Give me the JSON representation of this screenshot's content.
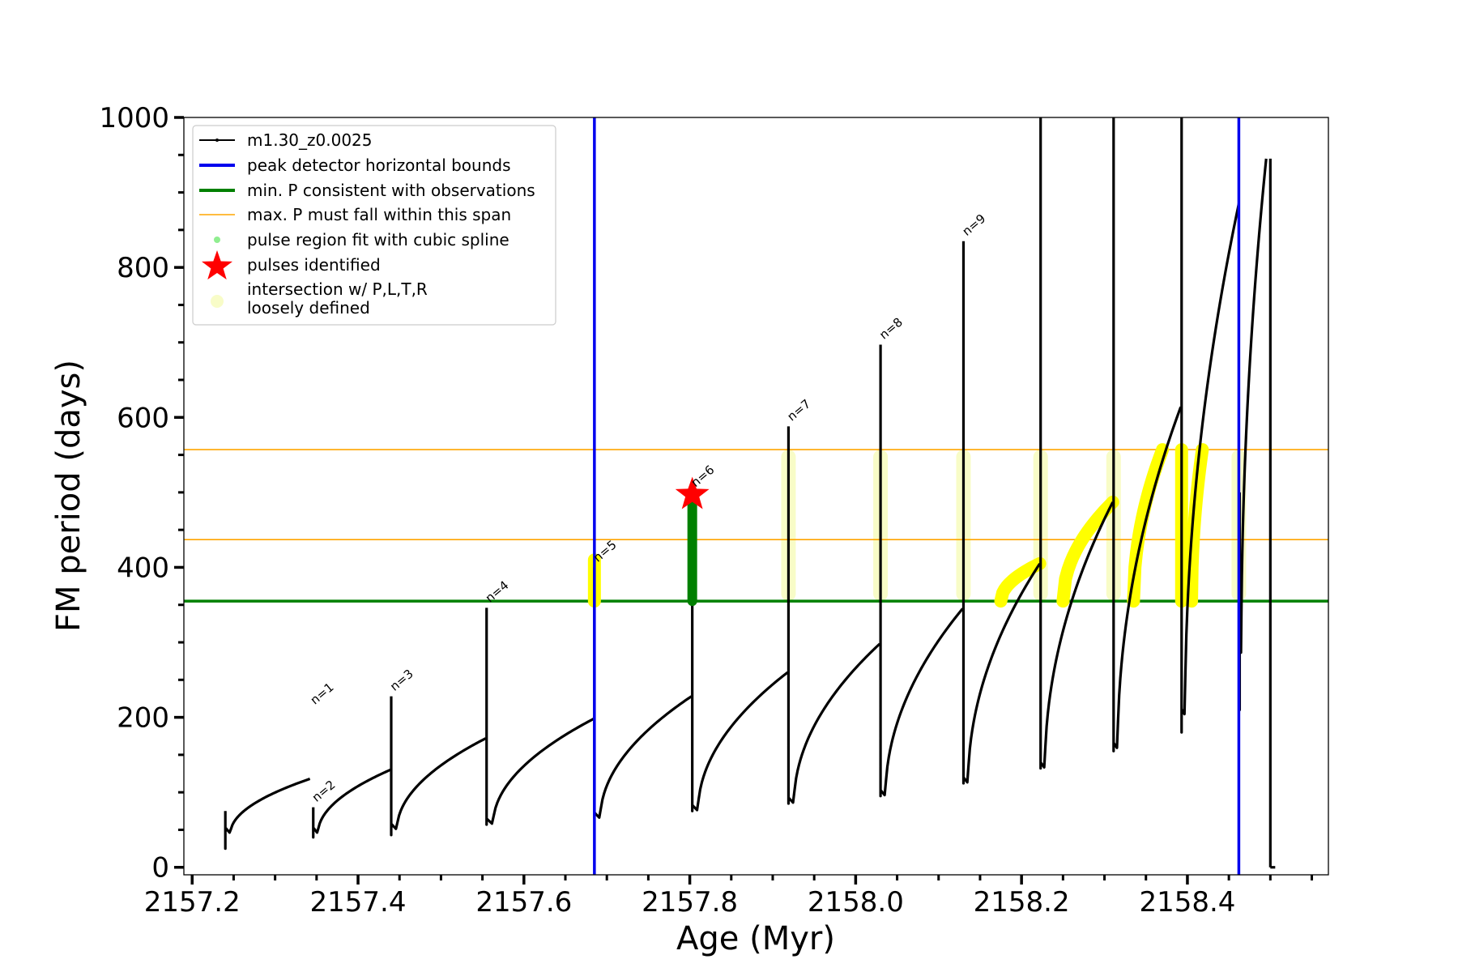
{
  "chart_data": {
    "type": "line",
    "xlabel": "Age (Myr)",
    "ylabel": "FM period (days)",
    "xlim": [
      2157.19,
      2158.57
    ],
    "ylim": [
      -10,
      1000
    ],
    "x_ticks": [
      2157.2,
      2157.4,
      2157.6,
      2157.8,
      2158.0,
      2158.2,
      2158.4
    ],
    "x_tick_labels": [
      "2157.2",
      "2157.4",
      "2157.6",
      "2157.8",
      "2158.0",
      "2158.2",
      "2158.4"
    ],
    "y_ticks": [
      0,
      200,
      400,
      600,
      800,
      1000
    ],
    "y_tick_labels": [
      "0",
      "200",
      "400",
      "600",
      "800",
      "1000"
    ],
    "grid": false,
    "legend_position": "top-left",
    "legend": [
      {
        "label": "m1.30_z0.0025",
        "style": "line-with-dots",
        "color": "#000000"
      },
      {
        "label": "peak detector horizontal bounds",
        "style": "line",
        "color": "#0000ee"
      },
      {
        "label": "min. P consistent with observations",
        "style": "line",
        "color": "#008000"
      },
      {
        "label": "max. P must fall within this span",
        "style": "thin-line",
        "color": "#ffa500"
      },
      {
        "label": "pulse region fit with cubic spline",
        "style": "dot",
        "color": "#90ee90"
      },
      {
        "label": "pulses identified",
        "style": "star",
        "color": "#ff0000"
      },
      {
        "label": "intersection w/ P,L,T,R\nloosely defined",
        "style": "circle",
        "color": "#f8fcc8"
      }
    ],
    "vertical_bounds": [
      2157.685,
      2158.462
    ],
    "min_period": 355,
    "max_period_span": [
      437,
      557
    ],
    "pulses": [
      {
        "label": "n=1",
        "x": 2157.344,
        "peak": 210,
        "min": 40
      },
      {
        "label": "n=2",
        "x": 2157.346,
        "peak": 80,
        "min": 45
      },
      {
        "label": "n=3",
        "x": 2157.44,
        "peak": 228,
        "min": 43
      },
      {
        "label": "n=4",
        "x": 2157.555,
        "peak": 346,
        "min": 57
      },
      {
        "label": "n=5",
        "x": 2157.685,
        "peak": 400,
        "min": 65
      },
      {
        "label": "n=6",
        "x": 2157.803,
        "peak": 500,
        "min": 75
      },
      {
        "label": "n=7",
        "x": 2157.919,
        "peak": 588,
        "min": 85
      },
      {
        "label": "n=8",
        "x": 2158.03,
        "peak": 697,
        "min": 95
      },
      {
        "label": "n=9",
        "x": 2158.13,
        "peak": 835,
        "min": 110
      }
    ],
    "series": [
      {
        "name": "m1.30_z0.0025",
        "color": "#000000",
        "segments": [
          {
            "x0": 2157.24,
            "x1": 2157.342,
            "y0": 45,
            "y1": 118,
            "spike_start": 75,
            "spike_bottom": 25
          },
          {
            "x0": 2157.346,
            "x1": 2157.439,
            "y0": 45,
            "y1": 130,
            "spike_start": 80,
            "spike_bottom": 40
          },
          {
            "x0": 2157.44,
            "x1": 2157.554,
            "y0": 50,
            "y1": 172,
            "spike_start": 228,
            "spike_bottom": 43
          },
          {
            "x0": 2157.555,
            "x1": 2157.684,
            "y0": 57,
            "y1": 198,
            "spike_start": 346,
            "spike_bottom": 57
          },
          {
            "x0": 2157.685,
            "x1": 2157.802,
            "y0": 65,
            "y1": 228,
            "spike_start": 400,
            "spike_bottom": 65
          },
          {
            "x0": 2157.803,
            "x1": 2157.918,
            "y0": 75,
            "y1": 260,
            "spike_start": 500,
            "spike_bottom": 75
          },
          {
            "x0": 2157.919,
            "x1": 2158.029,
            "y0": 85,
            "y1": 298,
            "spike_start": 588,
            "spike_bottom": 85
          },
          {
            "x0": 2158.03,
            "x1": 2158.129,
            "y0": 95,
            "y1": 345,
            "spike_start": 697,
            "spike_bottom": 95
          },
          {
            "x0": 2158.13,
            "x1": 2158.222,
            "y0": 112,
            "y1": 405,
            "spike_start": 835,
            "spike_bottom": 112
          },
          {
            "x0": 2158.223,
            "x1": 2158.31,
            "y0": 132,
            "y1": 487,
            "spike_start": 1000,
            "spike_bottom": 132
          },
          {
            "x0": 2158.311,
            "x1": 2158.392,
            "y0": 158,
            "y1": 614,
            "spike_start": 1000,
            "spike_bottom": 155
          },
          {
            "x0": 2158.393,
            "x1": 2158.462,
            "y0": 203,
            "y1": 885,
            "spike_start": 1000,
            "spike_bottom": 180
          },
          {
            "x0": 2158.463,
            "x1": 2158.495,
            "y0": 285,
            "y1": 945,
            "spike_start": 500,
            "spike_bottom": 210
          }
        ],
        "final_drop": {
          "x": 2158.5,
          "from": 945,
          "to": 0
        }
      }
    ],
    "highlighted_regions_yellow": [
      {
        "x0": 2157.685,
        "x1": 2157.685,
        "y0": 355,
        "y1": 410
      },
      {
        "x0": 2158.175,
        "x1": 2158.222,
        "y0": 355,
        "y1": 405
      },
      {
        "x0": 2158.25,
        "x1": 2158.31,
        "y0": 355,
        "y1": 487
      },
      {
        "x0": 2158.335,
        "x1": 2158.37,
        "y0": 355,
        "y1": 557
      },
      {
        "x0": 2158.393,
        "x1": 2158.393,
        "y0": 355,
        "y1": 557
      },
      {
        "x0": 2158.405,
        "x1": 2158.418,
        "y0": 355,
        "y1": 557
      }
    ],
    "loosely_defined_columns": [
      2157.919,
      2158.03,
      2158.13,
      2158.223,
      2158.311,
      2158.462
    ],
    "green_spline_pulse": {
      "x": 2157.803,
      "y0": 355,
      "y1": 500
    },
    "identified_pulse_star": {
      "x": 2157.803,
      "y": 497
    }
  }
}
